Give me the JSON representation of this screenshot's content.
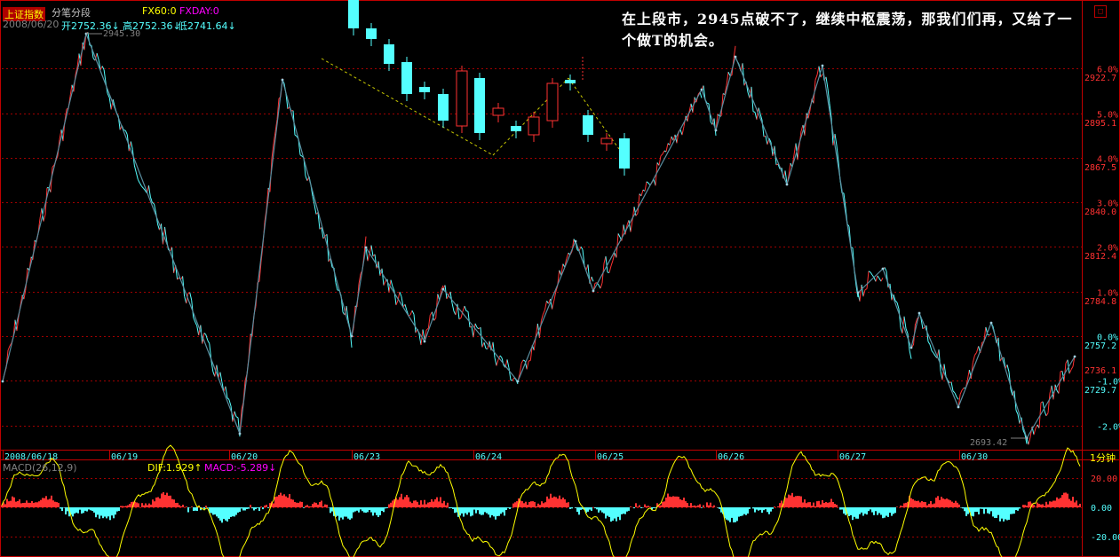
{
  "header": {
    "title": "上证指数",
    "mode": "分笔分段",
    "date": "2008/06/20",
    "open_label": "开2752.36↓",
    "high_label": "高2752.36↓",
    "low_label": "低2741.64↓",
    "fx60_label": "FX60:0",
    "fxday_label": "FXDAY:0"
  },
  "annotation": "在上段市，2945点破不了，继续中枢震荡，那我们们再，又给了一个做T的机会。",
  "period_label": "1分钟",
  "colors": {
    "background": "#000000",
    "frame": "#c00000",
    "grid": "#a00000",
    "up": "#ff3232",
    "down": "#54ffff",
    "stroke_line": "#7fb8c8",
    "macd_line": "#ffff00",
    "dif_label": "#ffff00",
    "macd_label": "#ff00ff",
    "axis_text_up": "#ff3232",
    "axis_text_down": "#54ffff",
    "zero_text": "#54ffff"
  },
  "chart_data": [
    {
      "type": "line",
      "title": "上证指数 1分钟",
      "x_categories": [
        "2008/06/18",
        "06/19",
        "06/20",
        "06/23",
        "06/24",
        "06/25",
        "06/26",
        "06/27",
        "06/30"
      ],
      "y_labels_left": [],
      "y_price_ticks": [
        "2922.7",
        "2895.1",
        "2867.5",
        "2840.0",
        "2812.4",
        "2784.8",
        "2757.2",
        "2729.7"
      ],
      "y_pct_ticks": [
        "6.0%",
        "5.0%",
        "4.0%",
        "3.0%",
        "2.0%",
        "1.0%",
        "0.0%",
        "-1.0%",
        "-2.0%"
      ],
      "pct_tick_values": [
        6,
        5,
        4,
        3,
        2,
        1,
        0,
        -1,
        -2
      ],
      "price_tick_values": [
        2922.7,
        2895.1,
        2867.5,
        2840.0,
        2812.4,
        2784.8,
        2757.2,
        2729.7
      ],
      "y_range": [
        2700,
        2950
      ],
      "current_price": "2736.1",
      "high_marker": "2945.30",
      "low_marker": "2693.42",
      "stroke_points": [
        [
          0,
          2737
        ],
        [
          20,
          2945.3
        ],
        [
          58,
          2700
        ],
        [
          67,
          2905
        ],
        [
          84,
          2760
        ],
        [
          88,
          2808
        ],
        [
          106,
          2768
        ],
        [
          110,
          2786
        ],
        [
          126,
          2738
        ],
        [
          141,
          2810
        ],
        [
          146,
          2790
        ],
        [
          150,
          2813
        ],
        [
          168,
          2900
        ],
        [
          171,
          2885
        ],
        [
          180,
          2913
        ],
        [
          188,
          2855
        ],
        [
          200,
          2918
        ],
        [
          207,
          2790
        ],
        [
          220,
          2755
        ],
        [
          232,
          2770
        ],
        [
          240,
          2745
        ],
        [
          251,
          2765
        ],
        [
          271,
          2700
        ],
        [
          289,
          2770
        ]
      ],
      "stroke_x_max": 295
    },
    {
      "type": "bar",
      "title": "MACD(26,12,9)",
      "dif_label": "DIF:1.929↑",
      "macd_label": "MACD:-5.289↓",
      "y_ticks": [
        "20.00",
        "0.00",
        "-20.00"
      ],
      "y_tick_values": [
        20,
        0,
        -20
      ],
      "y_range": [
        -27,
        27
      ]
    }
  ]
}
